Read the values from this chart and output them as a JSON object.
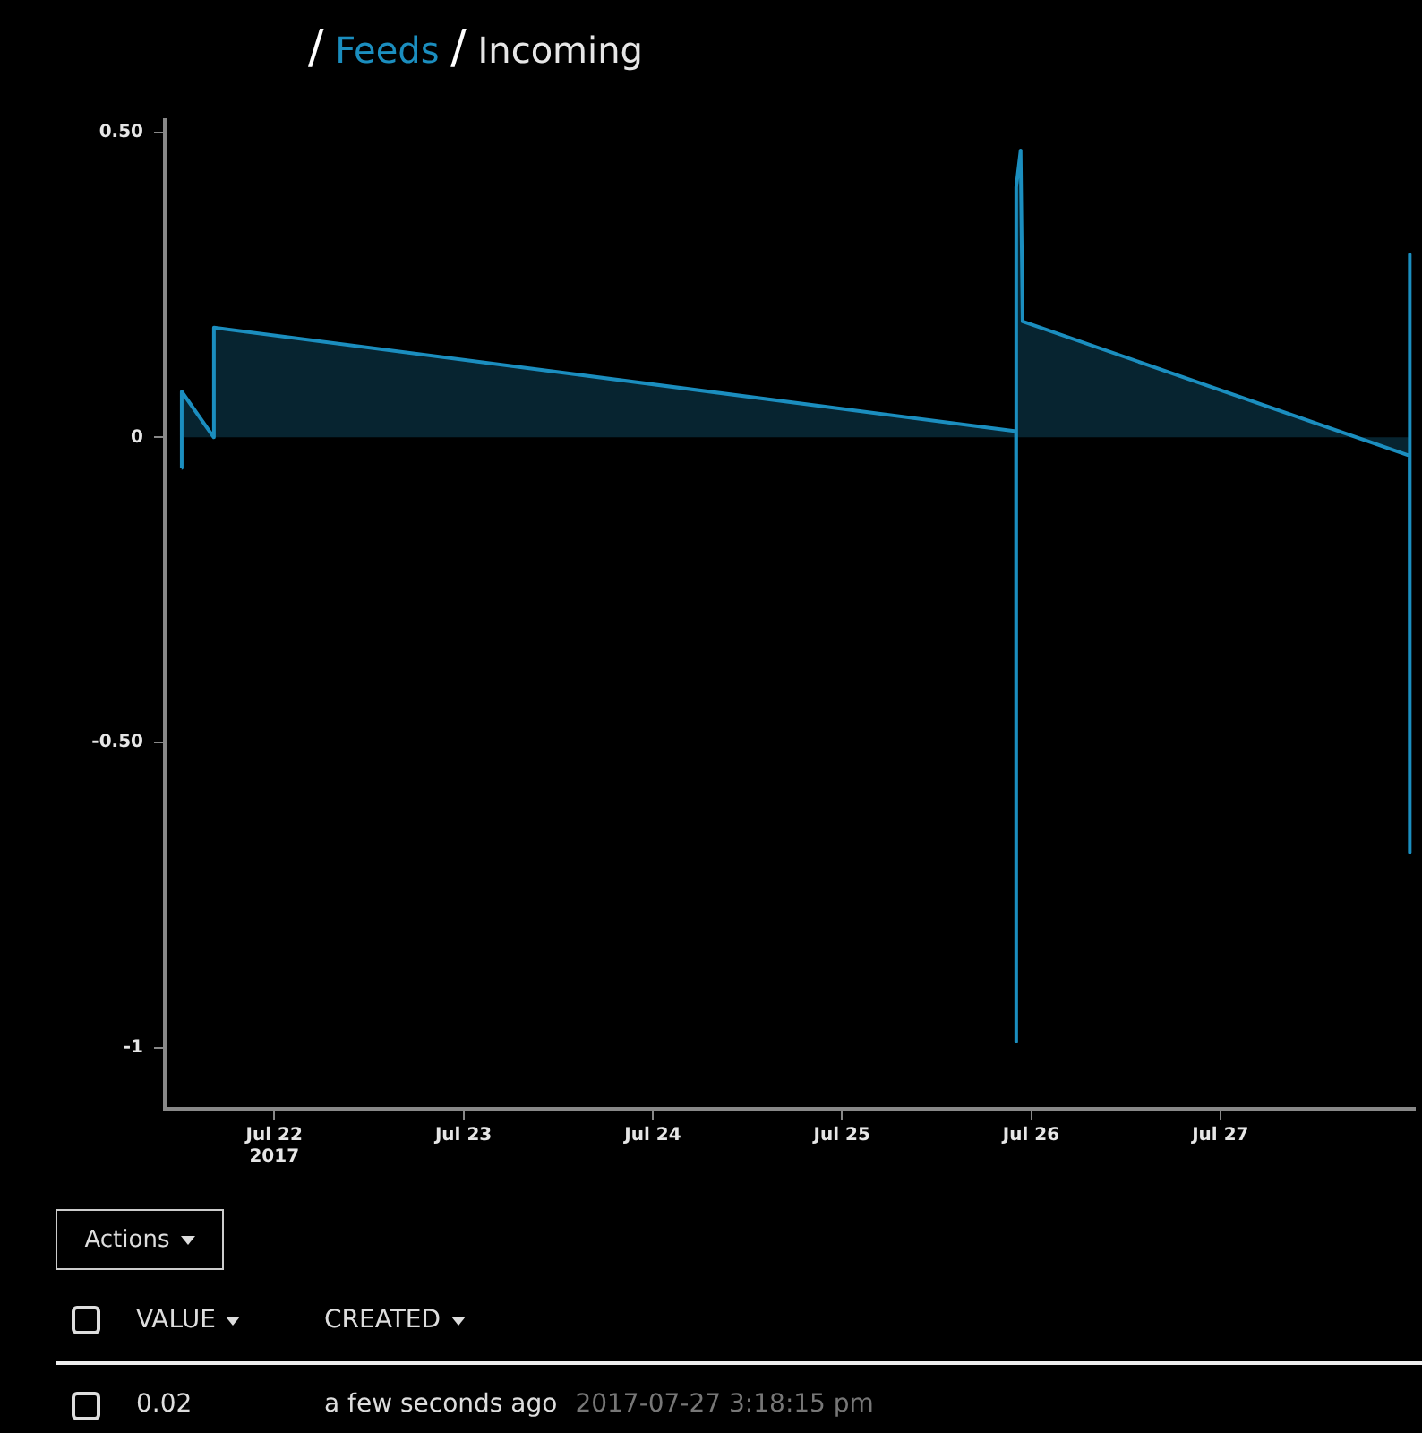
{
  "chart_data": {
    "type": "area",
    "x": [
      "2017-07-21T12:15",
      "2017-07-21T12:16",
      "2017-07-21T16:20",
      "2017-07-21T16:21",
      "2017-07-25T22:05",
      "2017-07-25T22:06",
      "2017-07-25T22:07",
      "2017-07-25T22:40",
      "2017-07-25T22:55",
      "2017-07-28T00:00",
      "2017-07-28T00:01",
      "2017-07-28T00:02"
    ],
    "series": [
      {
        "color": "#1b8ebf",
        "values": [
          -0.05,
          0.075,
          0,
          0.18,
          0.01,
          -0.99,
          0.41,
          0.47,
          0.19,
          -0.03,
          0.3,
          -0.68
        ]
      }
    ],
    "xlim": [
      "2017-07-21T10:07",
      "2017-07-28T00:40"
    ],
    "xticks": [
      {
        "value": "2017-07-22",
        "label": "Jul 22\n2017"
      },
      {
        "value": "2017-07-23",
        "label": "Jul 23"
      },
      {
        "value": "2017-07-24",
        "label": "Jul 24"
      },
      {
        "value": "2017-07-25",
        "label": "Jul 25"
      },
      {
        "value": "2017-07-26",
        "label": "Jul 26"
      },
      {
        "value": "2017-07-27",
        "label": "Jul 27"
      }
    ],
    "ylim": [
      -1.1,
      0.52
    ],
    "yticks": [
      {
        "value": 0.5,
        "label": "0.50"
      },
      0,
      {
        "value": -0.5,
        "label": "-0.50"
      },
      -1
    ],
    "grid": false,
    "legend": false,
    "line_style": "solid",
    "marker": "none",
    "annotations": [
      "/",
      "Feeds",
      "/",
      "Incoming",
      "Actions",
      "VALUE",
      "CREATED",
      "0.02",
      "a few seconds ago",
      "2017-07-27 3:18:15 pm"
    ]
  }
}
